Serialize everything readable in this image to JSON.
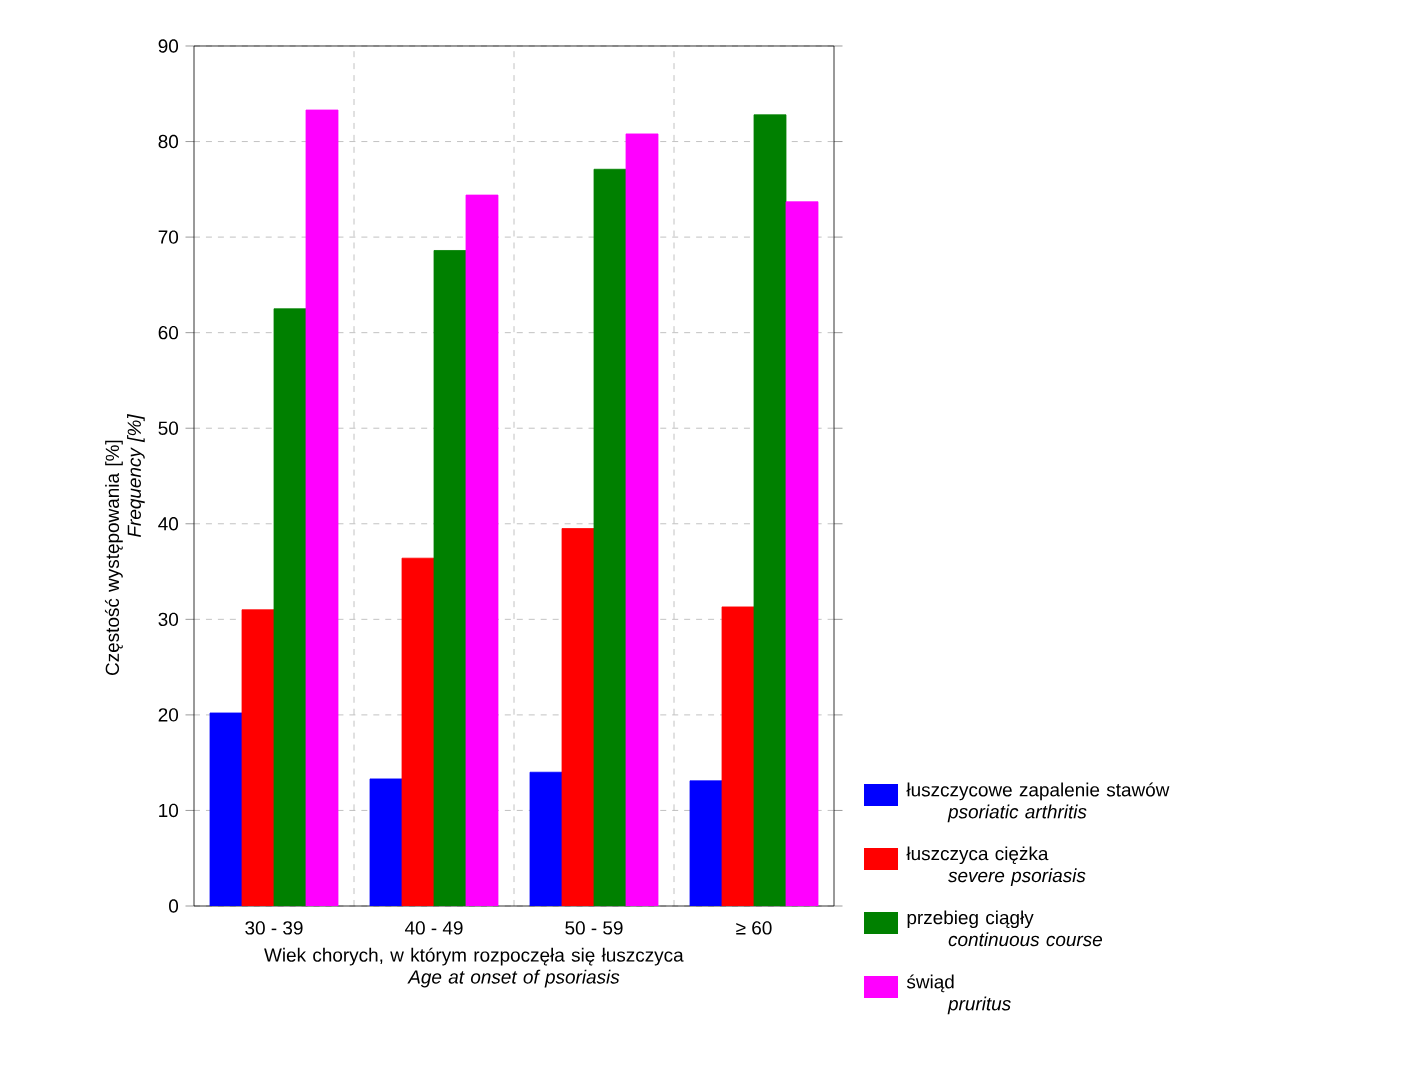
{
  "chart_data": {
    "type": "bar",
    "ylabel": "Częstość występowania [%] *Frequency [%]*",
    "xlabel": "Wiek chorych, w którym rozpoczęła się łuszczyca *Age at onset of psoriasis*",
    "categories": [
      "30 - 39",
      "40 - 49",
      "50 - 59",
      "≥ 60"
    ],
    "series": [
      {
        "name": "łuszczycowe zapalenie stawów *psoriatic arthritis*",
        "color": "#0000ff",
        "values": [
          20.2,
          13.3,
          14.0,
          13.1
        ]
      },
      {
        "name": "łuszczyca ciężka *severe psoriasis*",
        "color": "#ff0000",
        "values": [
          31.0,
          36.4,
          39.5,
          31.3
        ]
      },
      {
        "name": "przebieg ciągły *continuous course*",
        "color": "#008000",
        "values": [
          62.5,
          68.6,
          77.1,
          82.8
        ]
      },
      {
        "name": "świąd *pruritus*",
        "color": "#ff00ff",
        "values": [
          83.3,
          74.4,
          80.8,
          73.7
        ]
      }
    ],
    "ylim": [
      0,
      90
    ],
    "yticks": [
      0,
      10,
      20,
      30,
      40,
      50,
      60,
      70,
      80,
      90
    ],
    "grid": true,
    "legend": "right"
  }
}
